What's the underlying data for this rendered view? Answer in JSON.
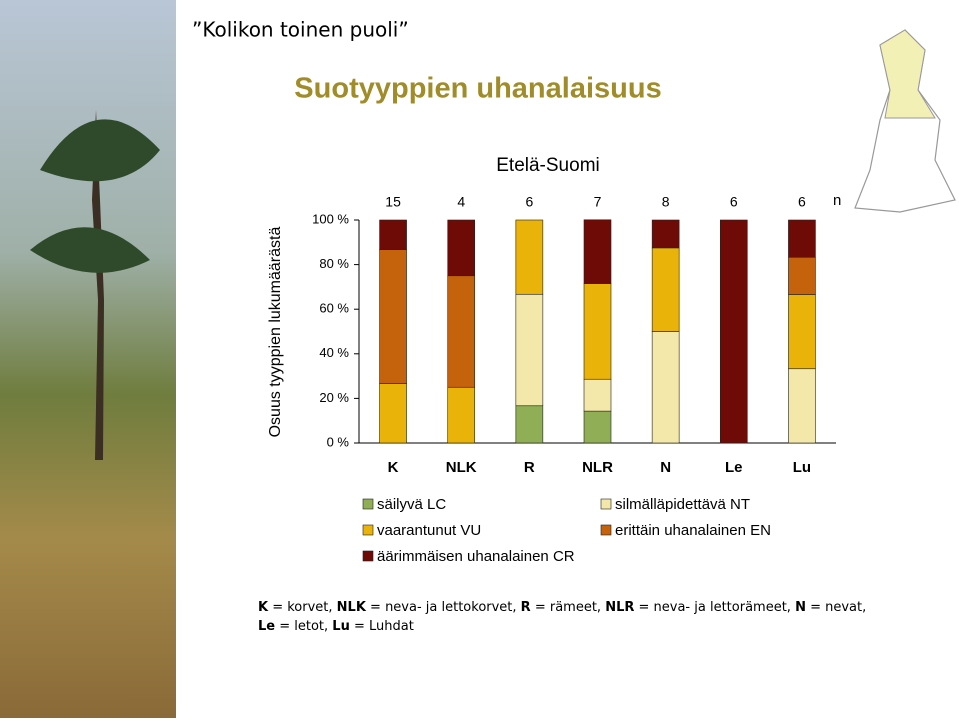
{
  "header": "”Kolikon toinen puoli”",
  "chart_data": {
    "type": "stacked-bar",
    "title": "Suotyyppien uhanalaisuus",
    "subtitle": "Etelä-Suomi",
    "y_label": "Osuus tyyppien lukumäärästä",
    "categories": [
      "K",
      "NLK",
      "R",
      "NLR",
      "N",
      "Le",
      "Lu"
    ],
    "counts": [
      15,
      4,
      6,
      7,
      8,
      6,
      6
    ],
    "count_label": "n",
    "series": [
      {
        "name": "säilyvä LC",
        "color": "#8fae56",
        "values": [
          0,
          0,
          16.7,
          14.3,
          0,
          0,
          0
        ]
      },
      {
        "name": "silmälläpidettävä NT",
        "color": "#f3e7a9",
        "values": [
          0,
          0,
          50,
          14.3,
          50,
          0,
          33.3
        ]
      },
      {
        "name": "vaarantunut VU",
        "color": "#e9b30a",
        "values": [
          26.7,
          25,
          33.3,
          42.9,
          37.5,
          0,
          33.3
        ]
      },
      {
        "name": "erittäin uhanalainen EN",
        "color": "#c5620c",
        "values": [
          60,
          50,
          0,
          0,
          0,
          0,
          16.7
        ]
      },
      {
        "name": "äärimmäisen uhanalainen CR",
        "color": "#6e0b06",
        "values": [
          13.3,
          25,
          0,
          28.6,
          12.5,
          100,
          16.7
        ]
      }
    ],
    "ylim": [
      0,
      100
    ],
    "yticks": [
      {
        "value": 0,
        "label": "0 %"
      },
      {
        "value": 20,
        "label": "20 %"
      },
      {
        "value": 40,
        "label": "40 %"
      },
      {
        "value": 60,
        "label": "60 %"
      },
      {
        "value": 80,
        "label": "80 %"
      },
      {
        "value": 100,
        "label": "100 %"
      }
    ]
  },
  "footnote": [
    [
      {
        "abbr": "K",
        "text": " = korvet, "
      },
      {
        "abbr": "NLK",
        "text": " = neva- ja lettokorvet, "
      },
      {
        "abbr": "R",
        "text": " = rämeet, "
      },
      {
        "abbr": "NLR",
        "text": " = neva- ja lettorämeet, "
      },
      {
        "abbr": "N",
        "text": " = nevat,"
      }
    ],
    [
      {
        "abbr": "Le",
        "text": " = letot, "
      },
      {
        "abbr": "Lu",
        "text": " = Luhdat"
      }
    ]
  ]
}
